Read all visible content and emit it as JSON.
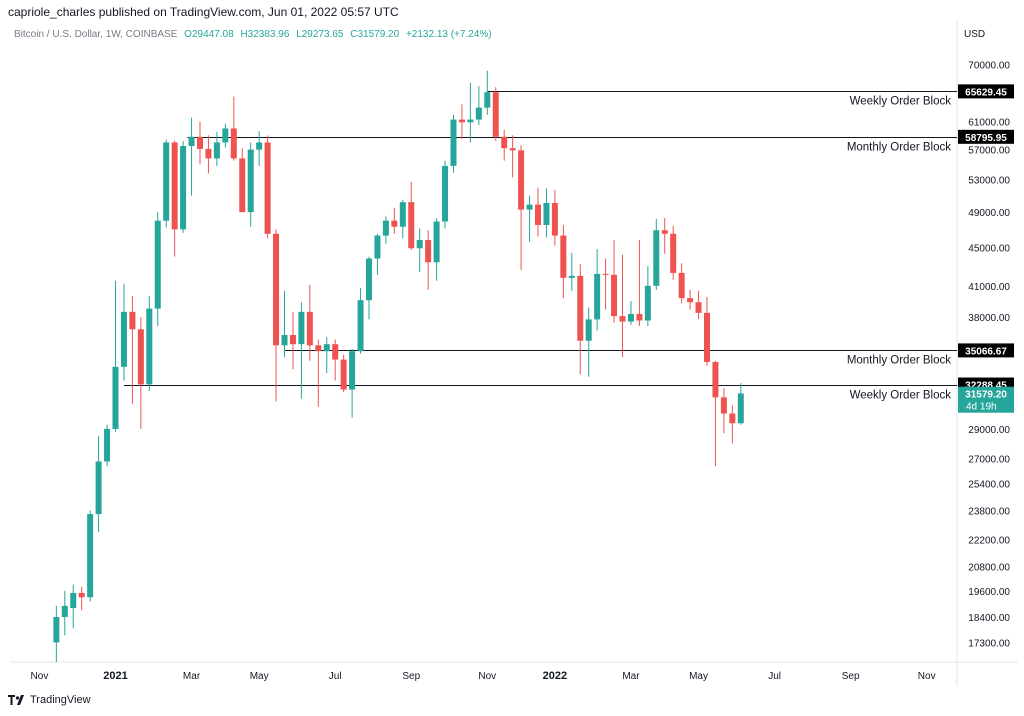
{
  "header": {
    "published_text": "capriole_charles published on TradingView.com, Jun 01, 2022 05:57 UTC"
  },
  "symbol": {
    "name": "Bitcoin / U.S. Dollar, 1W, COINBASE",
    "open": "O29447.08",
    "high": "H32383.96",
    "low": "L29273.65",
    "close": "C31579.20",
    "change": "+2132.13 (+7.24%)"
  },
  "footer": {
    "brand": "TradingView",
    "logo_icon": "tradingview-logo-icon"
  },
  "colors": {
    "up": "#26a69a",
    "down": "#ef5350",
    "text": "#131722",
    "muted": "#787b86",
    "grid_border": "#e0e3eb"
  },
  "chart_data": {
    "type": "candlestick",
    "currency_label": "USD",
    "y_scale": "log",
    "ylim": [
      16500,
      78000
    ],
    "y_ticks": [
      "70000.00",
      "61000.00",
      "57000.00",
      "53000.00",
      "49000.00",
      "45000.00",
      "41000.00",
      "38000.00",
      "29000.00",
      "27000.00",
      "25400.00",
      "23800.00",
      "22200.00",
      "20800.00",
      "19600.00",
      "18400.00",
      "17300.00"
    ],
    "x_ticks": [
      "Nov",
      "2021",
      "Mar",
      "May",
      "Jul",
      "Sep",
      "Nov",
      "2022",
      "Mar",
      "May",
      "Jul",
      "Sep",
      "Nov"
    ],
    "x_tick_weeks": [
      -9,
      0,
      9,
      17,
      26,
      35,
      44,
      52,
      61,
      69,
      78,
      87,
      96
    ],
    "candles": [
      {
        "w": -7,
        "o": 17300,
        "h": 18900,
        "l": 16500,
        "c": 18400
      },
      {
        "w": -6,
        "o": 18400,
        "h": 19600,
        "l": 17600,
        "c": 18900
      },
      {
        "w": -5,
        "o": 18800,
        "h": 19900,
        "l": 17900,
        "c": 19500
      },
      {
        "w": -4,
        "o": 19500,
        "h": 19800,
        "l": 18700,
        "c": 19300
      },
      {
        "w": -3,
        "o": 19300,
        "h": 23800,
        "l": 19100,
        "c": 23600
      },
      {
        "w": -2,
        "o": 23600,
        "h": 28500,
        "l": 22600,
        "c": 26800
      },
      {
        "w": -1,
        "o": 26800,
        "h": 29300,
        "l": 26500,
        "c": 29000
      },
      {
        "w": 0,
        "o": 29000,
        "h": 41500,
        "l": 28800,
        "c": 33700
      },
      {
        "w": 1,
        "o": 33700,
        "h": 41200,
        "l": 32600,
        "c": 38500
      },
      {
        "w": 2,
        "o": 38500,
        "h": 40000,
        "l": 30800,
        "c": 36900
      },
      {
        "w": 3,
        "o": 36900,
        "h": 38000,
        "l": 29000,
        "c": 32300
      },
      {
        "w": 4,
        "o": 32300,
        "h": 40000,
        "l": 31800,
        "c": 38800
      },
      {
        "w": 5,
        "o": 38800,
        "h": 49000,
        "l": 37200,
        "c": 48000
      },
      {
        "w": 6,
        "o": 48000,
        "h": 58400,
        "l": 47200,
        "c": 58000
      },
      {
        "w": 7,
        "o": 58000,
        "h": 58300,
        "l": 44000,
        "c": 47000
      },
      {
        "w": 8,
        "o": 47000,
        "h": 58200,
        "l": 46600,
        "c": 57500
      },
      {
        "w": 9,
        "o": 57500,
        "h": 61600,
        "l": 51000,
        "c": 58800
      },
      {
        "w": 10,
        "o": 58800,
        "h": 61000,
        "l": 55000,
        "c": 57100
      },
      {
        "w": 11,
        "o": 57100,
        "h": 59000,
        "l": 53800,
        "c": 55800
      },
      {
        "w": 12,
        "o": 55800,
        "h": 59500,
        "l": 54800,
        "c": 58000
      },
      {
        "w": 13,
        "o": 58000,
        "h": 60700,
        "l": 57300,
        "c": 60000
      },
      {
        "w": 14,
        "o": 60000,
        "h": 64800,
        "l": 55500,
        "c": 55800
      },
      {
        "w": 15,
        "o": 55800,
        "h": 57200,
        "l": 49000,
        "c": 49000
      },
      {
        "w": 16,
        "o": 49000,
        "h": 58000,
        "l": 47300,
        "c": 57000
      },
      {
        "w": 17,
        "o": 57000,
        "h": 59600,
        "l": 54800,
        "c": 58000
      },
      {
        "w": 18,
        "o": 58000,
        "h": 59000,
        "l": 46000,
        "c": 46500
      },
      {
        "w": 19,
        "o": 46500,
        "h": 47000,
        "l": 31000,
        "c": 35500
      },
      {
        "w": 20,
        "o": 35500,
        "h": 40500,
        "l": 34500,
        "c": 36400
      },
      {
        "w": 21,
        "o": 36400,
        "h": 38500,
        "l": 33500,
        "c": 35600
      },
      {
        "w": 22,
        "o": 35600,
        "h": 39400,
        "l": 31200,
        "c": 38500
      },
      {
        "w": 23,
        "o": 38500,
        "h": 41100,
        "l": 34200,
        "c": 35500
      },
      {
        "w": 24,
        "o": 35500,
        "h": 36000,
        "l": 30600,
        "c": 35000
      },
      {
        "w": 25,
        "o": 35000,
        "h": 36200,
        "l": 33200,
        "c": 35600
      },
      {
        "w": 26,
        "o": 35600,
        "h": 36000,
        "l": 32600,
        "c": 34300
      },
      {
        "w": 27,
        "o": 34300,
        "h": 34700,
        "l": 31700,
        "c": 31900
      },
      {
        "w": 28,
        "o": 31900,
        "h": 35200,
        "l": 29800,
        "c": 35000
      },
      {
        "w": 29,
        "o": 35000,
        "h": 40800,
        "l": 34800,
        "c": 39600
      },
      {
        "w": 30,
        "o": 39600,
        "h": 44000,
        "l": 37800,
        "c": 43800
      },
      {
        "w": 31,
        "o": 43800,
        "h": 46500,
        "l": 42100,
        "c": 46300
      },
      {
        "w": 32,
        "o": 46300,
        "h": 48500,
        "l": 45400,
        "c": 48000
      },
      {
        "w": 33,
        "o": 48000,
        "h": 49500,
        "l": 46500,
        "c": 47300
      },
      {
        "w": 34,
        "o": 47300,
        "h": 50500,
        "l": 46000,
        "c": 50200
      },
      {
        "w": 35,
        "o": 50200,
        "h": 52700,
        "l": 44700,
        "c": 44900
      },
      {
        "w": 36,
        "o": 44900,
        "h": 47100,
        "l": 42400,
        "c": 45800
      },
      {
        "w": 37,
        "o": 45800,
        "h": 46900,
        "l": 40600,
        "c": 43400
      },
      {
        "w": 38,
        "o": 43400,
        "h": 48300,
        "l": 41500,
        "c": 47900
      },
      {
        "w": 39,
        "o": 47900,
        "h": 55500,
        "l": 47100,
        "c": 54800
      },
      {
        "w": 40,
        "o": 54800,
        "h": 62000,
        "l": 53900,
        "c": 61300
      },
      {
        "w": 41,
        "o": 61300,
        "h": 63600,
        "l": 58500,
        "c": 60900
      },
      {
        "w": 42,
        "o": 60900,
        "h": 67000,
        "l": 58000,
        "c": 61300
      },
      {
        "w": 43,
        "o": 61300,
        "h": 66500,
        "l": 60500,
        "c": 63100
      },
      {
        "w": 44,
        "o": 63100,
        "h": 69000,
        "l": 62000,
        "c": 65500
      },
      {
        "w": 45,
        "o": 65500,
        "h": 66300,
        "l": 58200,
        "c": 58800
      },
      {
        "w": 46,
        "o": 58800,
        "h": 59800,
        "l": 55500,
        "c": 57200
      },
      {
        "w": 47,
        "o": 57200,
        "h": 59000,
        "l": 53300,
        "c": 56900
      },
      {
        "w": 48,
        "o": 56900,
        "h": 57600,
        "l": 42600,
        "c": 49300
      },
      {
        "w": 49,
        "o": 49300,
        "h": 51000,
        "l": 45600,
        "c": 49900
      },
      {
        "w": 50,
        "o": 49900,
        "h": 52000,
        "l": 46200,
        "c": 47500
      },
      {
        "w": 51,
        "o": 47500,
        "h": 51900,
        "l": 46100,
        "c": 50100
      },
      {
        "w": 52,
        "o": 50100,
        "h": 51700,
        "l": 45200,
        "c": 46300
      },
      {
        "w": 53,
        "o": 46300,
        "h": 47500,
        "l": 39800,
        "c": 41800
      },
      {
        "w": 54,
        "o": 41800,
        "h": 44400,
        "l": 40500,
        "c": 42000
      },
      {
        "w": 55,
        "o": 42000,
        "h": 43200,
        "l": 33100,
        "c": 35900
      },
      {
        "w": 56,
        "o": 35900,
        "h": 38900,
        "l": 32900,
        "c": 37800
      },
      {
        "w": 57,
        "o": 37800,
        "h": 44800,
        "l": 36800,
        "c": 42200
      },
      {
        "w": 58,
        "o": 42200,
        "h": 43800,
        "l": 38700,
        "c": 42100
      },
      {
        "w": 59,
        "o": 42100,
        "h": 45800,
        "l": 37500,
        "c": 38100
      },
      {
        "w": 60,
        "o": 38100,
        "h": 44200,
        "l": 34500,
        "c": 37600
      },
      {
        "w": 61,
        "o": 37600,
        "h": 39500,
        "l": 37300,
        "c": 38300
      },
      {
        "w": 62,
        "o": 38300,
        "h": 45800,
        "l": 37200,
        "c": 37700
      },
      {
        "w": 63,
        "o": 37700,
        "h": 43000,
        "l": 37200,
        "c": 41000
      },
      {
        "w": 64,
        "o": 41000,
        "h": 48200,
        "l": 40600,
        "c": 46900
      },
      {
        "w": 65,
        "o": 46900,
        "h": 48300,
        "l": 44300,
        "c": 46500
      },
      {
        "w": 66,
        "o": 46500,
        "h": 47400,
        "l": 41600,
        "c": 42300
      },
      {
        "w": 67,
        "o": 42300,
        "h": 43300,
        "l": 39300,
        "c": 39800
      },
      {
        "w": 68,
        "o": 39800,
        "h": 40600,
        "l": 38700,
        "c": 39400
      },
      {
        "w": 69,
        "o": 39400,
        "h": 40500,
        "l": 37800,
        "c": 38400
      },
      {
        "w": 70,
        "o": 38400,
        "h": 39900,
        "l": 33800,
        "c": 34100
      },
      {
        "w": 71,
        "o": 34100,
        "h": 34200,
        "l": 26500,
        "c": 31300
      },
      {
        "w": 72,
        "o": 31300,
        "h": 32000,
        "l": 28700,
        "c": 30100
      },
      {
        "w": 73,
        "o": 30100,
        "h": 30700,
        "l": 28000,
        "c": 29400
      },
      {
        "w": 74,
        "o": 29400,
        "h": 32400,
        "l": 29300,
        "c": 31600
      }
    ],
    "levels": [
      {
        "price": 65629.45,
        "price_label": "65629.45",
        "label": "Weekly Order Block",
        "start_week": 44
      },
      {
        "price": 58795.95,
        "price_label": "58795.95",
        "label": "Monthly Order Block",
        "start_week": 8.5
      },
      {
        "price": 35066.67,
        "price_label": "35066.67",
        "label": "Monthly Order Block",
        "start_week": 20
      },
      {
        "price": 32288.45,
        "price_label": "32288.45",
        "label": "Weekly Order Block",
        "start_week": 1
      }
    ],
    "last_price": {
      "value": 31579.2,
      "label": "31579.20",
      "countdown": "4d 19h"
    }
  }
}
